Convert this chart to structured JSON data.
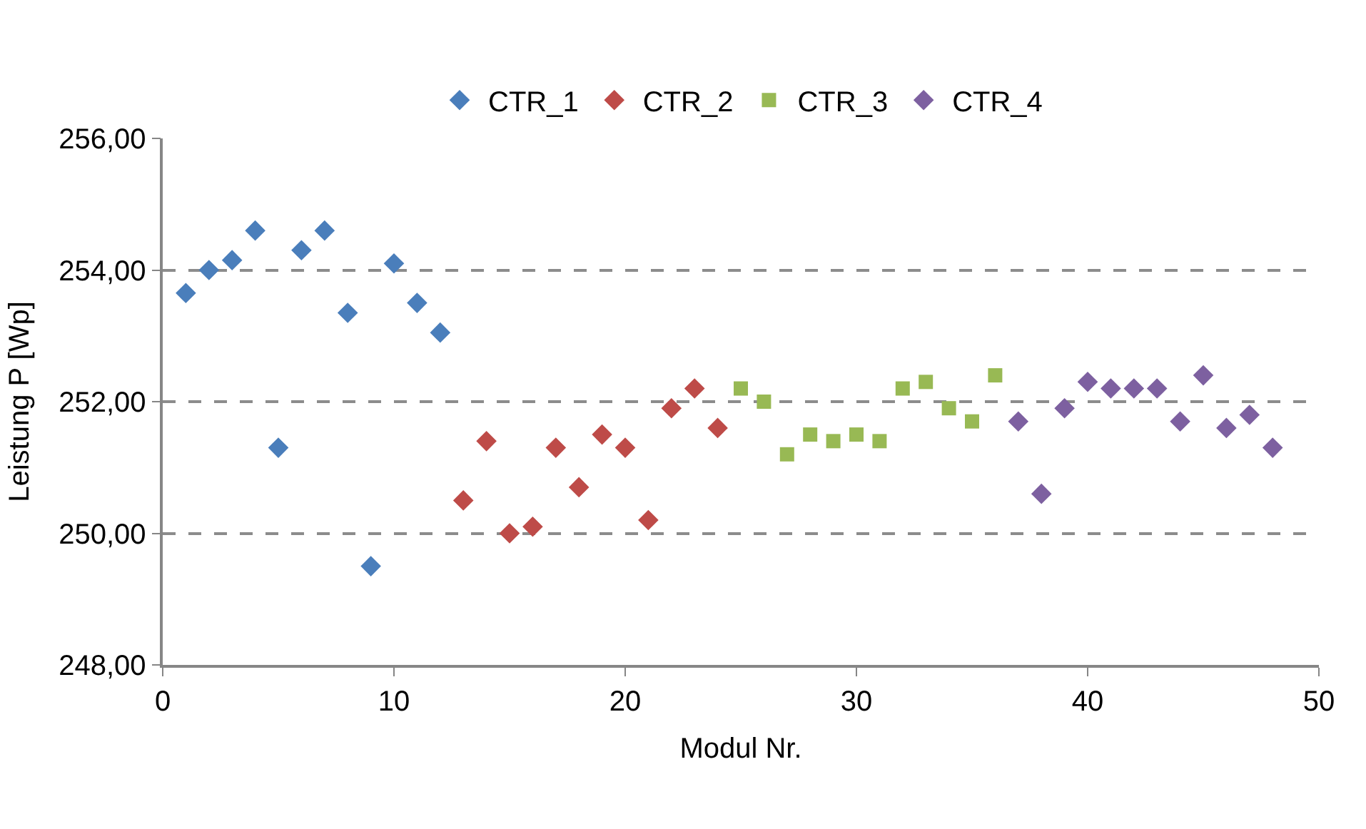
{
  "chart_data": {
    "type": "scatter",
    "xlabel": "Modul Nr.",
    "ylabel": "Leistung P [Wp]",
    "xlim": [
      0,
      50
    ],
    "xticks": [
      0,
      10,
      20,
      30,
      40,
      50
    ],
    "ylim": [
      248,
      256
    ],
    "yticks": [
      {
        "value": 248,
        "label": "248,00"
      },
      {
        "value": 250,
        "label": "250,00"
      },
      {
        "value": 252,
        "label": "252,00"
      },
      {
        "value": 254,
        "label": "254,00"
      },
      {
        "value": 256,
        "label": "256,00"
      }
    ],
    "grid": "y",
    "legend": "top",
    "series": [
      {
        "name": "CTR_1",
        "color": "#4a7ebb",
        "marker": "diamond",
        "x": [
          1,
          2,
          3,
          4,
          5,
          6,
          7,
          8,
          9,
          10,
          11,
          12
        ],
        "values": [
          253.65,
          254.0,
          254.15,
          254.6,
          251.3,
          254.3,
          254.6,
          253.35,
          249.5,
          254.1,
          253.5,
          253.05
        ]
      },
      {
        "name": "CTR_2",
        "color": "#be4b48",
        "marker": "diamond",
        "x": [
          13,
          14,
          15,
          16,
          17,
          18,
          19,
          20,
          21,
          22,
          23,
          24
        ],
        "values": [
          250.5,
          251.4,
          250.0,
          250.1,
          251.3,
          250.7,
          251.5,
          251.3,
          250.2,
          251.9,
          252.2,
          251.6
        ]
      },
      {
        "name": "CTR_3",
        "color": "#98b954",
        "marker": "square",
        "x": [
          25,
          26,
          27,
          28,
          29,
          30,
          31,
          32,
          33,
          34,
          35,
          36
        ],
        "values": [
          252.2,
          252.0,
          251.2,
          251.5,
          251.4,
          251.5,
          251.4,
          252.2,
          252.3,
          251.9,
          251.7,
          252.4
        ]
      },
      {
        "name": "CTR_4",
        "color": "#7d60a0",
        "marker": "diamond",
        "x": [
          37,
          38,
          39,
          40,
          41,
          42,
          43,
          44,
          45,
          46,
          47,
          48
        ],
        "values": [
          251.7,
          250.6,
          251.9,
          252.3,
          252.2,
          252.2,
          252.2,
          251.7,
          252.4,
          251.6,
          251.8,
          251.3
        ]
      }
    ]
  }
}
